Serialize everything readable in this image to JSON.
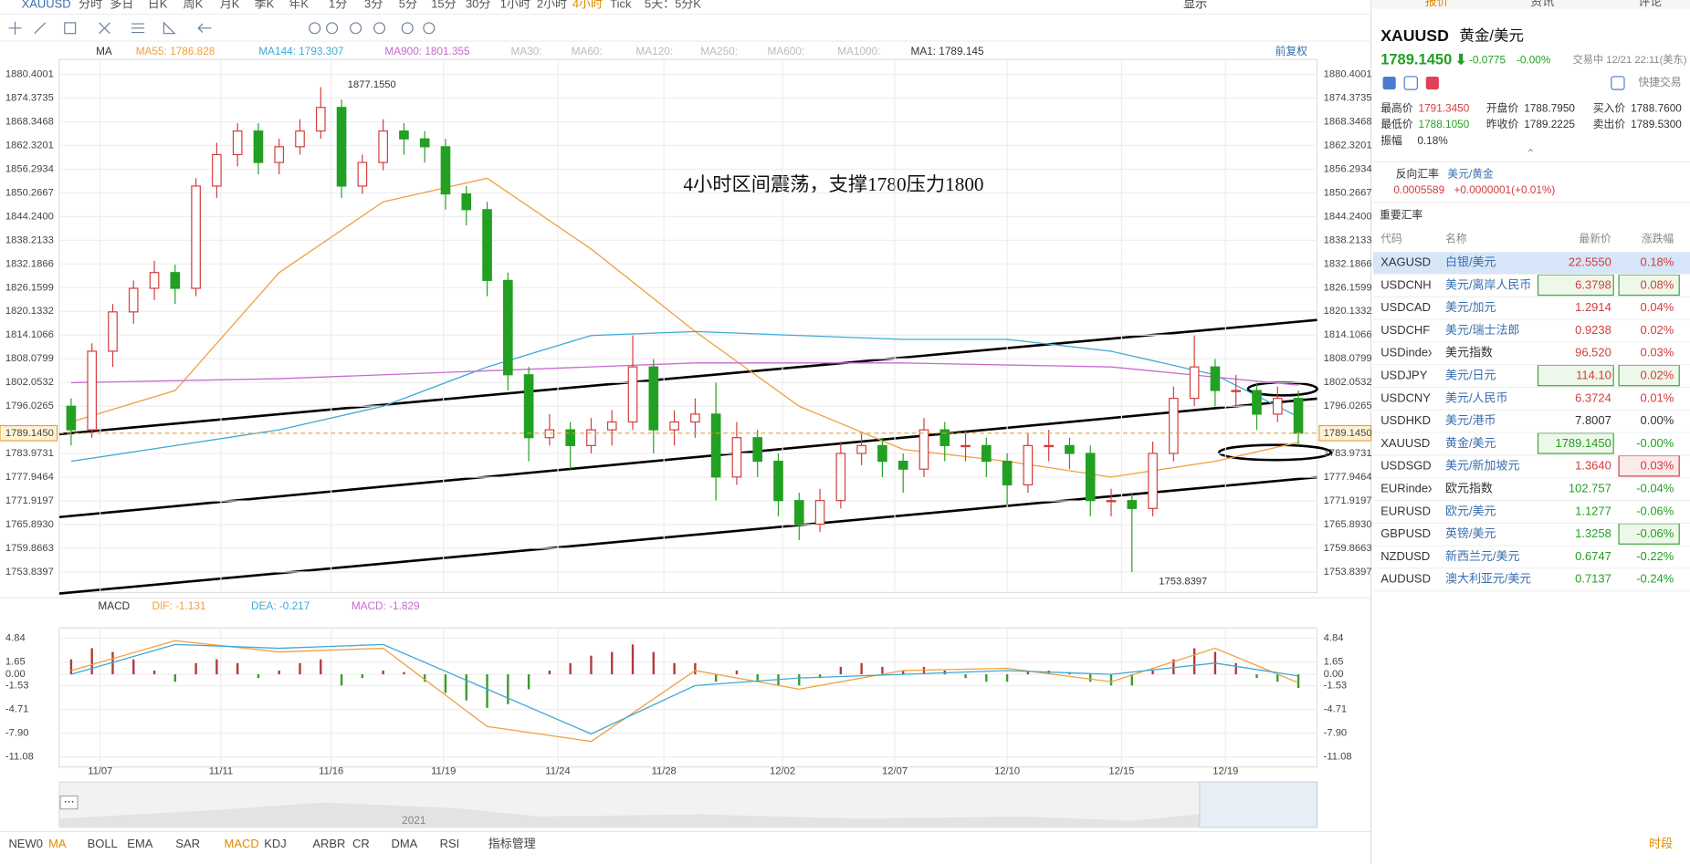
{
  "toolbar": {
    "symbol": "XAUUSD",
    "periods": [
      "分时",
      "多日",
      "日K",
      "周K",
      "月K",
      "季K",
      "年K",
      "1分",
      "3分",
      "5分",
      "15分",
      "30分",
      "1小时",
      "2小时",
      "4小时",
      "Tick",
      "5天：5分K"
    ],
    "active": "4小时",
    "display": "显示"
  },
  "side_tabs": [
    "报价",
    "资讯",
    "评论"
  ],
  "chart_data": [
    {
      "type": "candlestick",
      "indicator": "MA",
      "adjust": "前复权",
      "annotation": "4小时区间震荡，支撑1780压力1800",
      "high_label": "1877.1550",
      "low_label": "1753.8397",
      "last_price": {
        "value": 1789.145,
        "label": "1789.1450"
      },
      "up_color": "#d23c3c",
      "down_color": "#22a022",
      "xlim": [
        -0.57,
        59.9
      ],
      "ylim": [
        1748.63,
        1884.23
      ],
      "xticks": [
        {
          "value": 1.4,
          "label": "11/07"
        },
        {
          "value": 7.2,
          "label": "11/11"
        },
        {
          "value": 12.5,
          "label": "11/16"
        },
        {
          "value": 17.9,
          "label": "11/19"
        },
        {
          "value": 23.4,
          "label": "11/24"
        },
        {
          "value": 28.5,
          "label": "11/28"
        },
        {
          "value": 34.2,
          "label": "12/02"
        },
        {
          "value": 39.6,
          "label": "12/07"
        },
        {
          "value": 45.0,
          "label": "12/10"
        },
        {
          "value": 50.5,
          "label": "12/15"
        },
        {
          "value": 55.5,
          "label": "12/19"
        }
      ],
      "yticks": [
        {
          "value": 1880.4001,
          "label": "1880.4001"
        },
        {
          "value": 1874.3735,
          "label": "1874.3735"
        },
        {
          "value": 1868.3468,
          "label": "1868.3468"
        },
        {
          "value": 1862.3201,
          "label": "1862.3201"
        },
        {
          "value": 1856.2934,
          "label": "1856.2934"
        },
        {
          "value": 1850.2667,
          "label": "1850.2667"
        },
        {
          "value": 1844.24,
          "label": "1844.2400"
        },
        {
          "value": 1838.2133,
          "label": "1838.2133"
        },
        {
          "value": 1832.1866,
          "label": "1832.1866"
        },
        {
          "value": 1826.1599,
          "label": "1826.1599"
        },
        {
          "value": 1820.1332,
          "label": "1820.1332"
        },
        {
          "value": 1814.1066,
          "label": "1814.1066"
        },
        {
          "value": 1808.0799,
          "label": "1808.0799"
        },
        {
          "value": 1802.0532,
          "label": "1802.0532"
        },
        {
          "value": 1796.0265,
          "label": "1796.0265"
        },
        {
          "value": 1783.9731,
          "label": "1783.9731"
        },
        {
          "value": 1777.9464,
          "label": "1777.9464"
        },
        {
          "value": 1771.9197,
          "label": "1771.9197"
        },
        {
          "value": 1765.893,
          "label": "1765.8930"
        },
        {
          "value": 1759.8663,
          "label": "1759.8663"
        },
        {
          "value": 1753.8397,
          "label": "1753.8397"
        }
      ],
      "candles": [
        [
          1796,
          1798,
          1786,
          1790
        ],
        [
          1790,
          1812,
          1788,
          1810
        ],
        [
          1810,
          1822,
          1806,
          1820
        ],
        [
          1820,
          1828,
          1817,
          1826
        ],
        [
          1826,
          1833,
          1823,
          1830
        ],
        [
          1830,
          1832,
          1822,
          1826
        ],
        [
          1826,
          1854,
          1824,
          1852
        ],
        [
          1852,
          1863,
          1849,
          1860
        ],
        [
          1860,
          1868,
          1857,
          1866
        ],
        [
          1866,
          1868,
          1855,
          1858
        ],
        [
          1858,
          1864,
          1855,
          1862
        ],
        [
          1862,
          1869,
          1860,
          1866
        ],
        [
          1866,
          1877.155,
          1864,
          1872
        ],
        [
          1872,
          1874,
          1849,
          1852
        ],
        [
          1852,
          1860,
          1850,
          1858
        ],
        [
          1858,
          1869,
          1856,
          1866
        ],
        [
          1866,
          1868,
          1860,
          1864
        ],
        [
          1864,
          1866,
          1858,
          1862
        ],
        [
          1862,
          1864,
          1846,
          1850
        ],
        [
          1850,
          1852,
          1842,
          1846
        ],
        [
          1846,
          1848,
          1824,
          1828
        ],
        [
          1828,
          1830,
          1800,
          1804
        ],
        [
          1804,
          1806,
          1782,
          1788
        ],
        [
          1788,
          1794,
          1786,
          1790
        ],
        [
          1790,
          1792,
          1780,
          1786
        ],
        [
          1786,
          1793,
          1784,
          1790
        ],
        [
          1790,
          1795,
          1786,
          1792
        ],
        [
          1792,
          1814,
          1790,
          1806
        ],
        [
          1806,
          1808,
          1784,
          1790
        ],
        [
          1790,
          1795,
          1786,
          1792
        ],
        [
          1792,
          1798,
          1788,
          1794
        ],
        [
          1794,
          1802,
          1772,
          1778
        ],
        [
          1778,
          1792,
          1776,
          1788
        ],
        [
          1788,
          1790,
          1778,
          1782
        ],
        [
          1782,
          1784,
          1768,
          1772
        ],
        [
          1772,
          1774,
          1762,
          1766
        ],
        [
          1766,
          1775,
          1764,
          1772
        ],
        [
          1772,
          1787,
          1770,
          1784
        ],
        [
          1784,
          1789,
          1781,
          1786
        ],
        [
          1786,
          1788,
          1778,
          1782
        ],
        [
          1782,
          1784,
          1774,
          1780
        ],
        [
          1780,
          1793,
          1778,
          1790
        ],
        [
          1790,
          1792,
          1782,
          1786
        ],
        [
          1786,
          1790,
          1782,
          1786
        ],
        [
          1786,
          1788,
          1778,
          1782
        ],
        [
          1782,
          1784,
          1771,
          1776
        ],
        [
          1776,
          1789,
          1774,
          1786
        ],
        [
          1786,
          1790,
          1782,
          1786
        ],
        [
          1786,
          1788,
          1780,
          1784
        ],
        [
          1784,
          1786,
          1768,
          1772
        ],
        [
          1772,
          1775,
          1768,
          1772
        ],
        [
          1772,
          1774,
          1753.8397,
          1770
        ],
        [
          1770,
          1787,
          1768,
          1784
        ],
        [
          1784,
          1801,
          1782,
          1798
        ],
        [
          1798,
          1814,
          1796,
          1806
        ],
        [
          1806,
          1808,
          1796,
          1800
        ],
        [
          1800,
          1804,
          1796,
          1800
        ],
        [
          1800,
          1802,
          1790,
          1794
        ],
        [
          1794,
          1801,
          1792,
          1798
        ],
        [
          1798,
          1800,
          1786,
          1789.145
        ]
      ],
      "series": [
        {
          "name": "MA55",
          "label": "MA55: 1786.828",
          "color": "#f0a040",
          "x": [
            0,
            5,
            10,
            15,
            20,
            25,
            30,
            35,
            40,
            45,
            50,
            55,
            59
          ],
          "values": [
            1792,
            1800,
            1830,
            1848,
            1854,
            1836,
            1815,
            1796,
            1785,
            1782,
            1778,
            1782,
            1786.828
          ]
        },
        {
          "name": "MA144",
          "label": "MA144: 1793.307",
          "color": "#3fa9d6",
          "x": [
            0,
            5,
            10,
            15,
            20,
            25,
            30,
            35,
            40,
            45,
            50,
            55,
            59
          ],
          "values": [
            1782,
            1786,
            1790,
            1796,
            1806,
            1814,
            1815,
            1814,
            1813,
            1813,
            1810,
            1804,
            1793.307
          ]
        },
        {
          "name": "MA900",
          "label": "MA900: 1801.355",
          "color": "#c86ad0",
          "x": [
            0,
            10,
            20,
            30,
            40,
            50,
            59
          ],
          "values": [
            1802,
            1803,
            1805,
            1807,
            1807,
            1806,
            1801.355
          ]
        }
      ],
      "inactive_labels": [
        "MA30:",
        "MA60:",
        "MA120:",
        "MA250:",
        "MA600:",
        "MA1000:"
      ],
      "ma1_label": "MA1: 1789.145"
    },
    {
      "type": "macd",
      "indicator": "MACD",
      "xlim": [
        -0.57,
        59.9
      ],
      "ylim": [
        -12.43,
        6.21
      ],
      "yticks": [
        {
          "value": 4.84,
          "label": "4.84"
        },
        {
          "value": 1.65,
          "label": "1.65"
        },
        {
          "value": 0,
          "label": "0.00"
        },
        {
          "value": -1.53,
          "label": "-1.53"
        },
        {
          "value": -4.71,
          "label": "-4.71"
        },
        {
          "value": -7.9,
          "label": "-7.90"
        },
        {
          "value": -11.08,
          "label": "-11.08"
        }
      ],
      "series": [
        {
          "name": "DIF",
          "label": "DIF: -1.131",
          "color": "#f0a040",
          "x": [
            0,
            5,
            10,
            15,
            20,
            25,
            30,
            35,
            40,
            45,
            50,
            55,
            59
          ],
          "values": [
            0.5,
            4.5,
            3,
            3.5,
            -7,
            -9,
            0.5,
            -2,
            0.5,
            0.8,
            -1,
            3.5,
            -1.131
          ]
        },
        {
          "name": "DEA",
          "label": "DEA: -0.217",
          "color": "#3fa9d6",
          "x": [
            0,
            5,
            10,
            15,
            20,
            25,
            30,
            35,
            40,
            45,
            50,
            55,
            59
          ],
          "values": [
            0,
            4,
            3.5,
            4,
            -2,
            -8,
            -1.5,
            -0.5,
            0,
            0.5,
            0,
            1.5,
            -0.217
          ]
        }
      ],
      "histogram": {
        "name": "MACD",
        "label": "MACD: -1.829",
        "up_color": "#b03a3a",
        "down_color": "#3a9a2a",
        "values": [
          2,
          3.5,
          3,
          2,
          0.5,
          -1,
          1.5,
          2,
          1.5,
          -0.5,
          0.5,
          1.5,
          2,
          -1.5,
          -0.5,
          0.5,
          0.3,
          -1,
          -2.5,
          -3.5,
          -4.5,
          -4,
          -2,
          0.5,
          1.5,
          2.5,
          3,
          4,
          3,
          1.5,
          1.5,
          -1,
          0.5,
          -1,
          -1.5,
          -1.5,
          -0.5,
          1,
          1.5,
          1,
          0.5,
          1,
          0.5,
          -0.5,
          -1,
          -1,
          0.5,
          0.5,
          0.3,
          -1,
          -1.5,
          -1.5,
          0.5,
          2,
          3.5,
          3,
          1.5,
          -0.5,
          -1,
          -1.829
        ]
      }
    }
  ],
  "navigator": {
    "year": "2021"
  },
  "bottom_tabs": [
    "NEW0",
    "MA",
    "BOLL",
    "EMA",
    "SAR",
    "MACD",
    "KDJ",
    "ARBR",
    "CR",
    "DMA",
    "RSI",
    "指标管理"
  ],
  "session": "时段",
  "quote": {
    "code": "XAUUSD",
    "name": "黄金/美元",
    "price": "1789.1450",
    "change": "-0.0775",
    "change_pct": "-0.00%",
    "status": "交易中 12/21 22:11(美东)",
    "quick_trade": "快捷交易",
    "stats": [
      [
        "最高价",
        "1791.3450"
      ],
      [
        "开盘价",
        "1788.7950"
      ],
      [
        "买入价",
        "1788.7600"
      ],
      [
        "最低价",
        "1788.1050"
      ],
      [
        "昨收价",
        "1789.2225"
      ],
      [
        "卖出价",
        "1789.5300"
      ],
      [
        "振幅",
        "0.18%"
      ]
    ],
    "reverse": {
      "title": "反向汇率",
      "pair": "美元/黄金",
      "price": "0.0005589",
      "change": "+0.0000001(+0.01%)"
    }
  },
  "table": {
    "title": "重要汇率",
    "columns": [
      "代码",
      "名称",
      "最新价",
      "涨跌幅"
    ],
    "rows": [
      [
        "XAGUSD",
        "白银/美元",
        "22.5550",
        "0.18%"
      ],
      [
        "USDCNH",
        "美元/离岸人民币",
        "6.3798",
        "0.08%"
      ],
      [
        "USDCAD",
        "美元/加元",
        "1.2914",
        "0.04%"
      ],
      [
        "USDCHF",
        "美元/瑞士法郎",
        "0.9238",
        "0.02%"
      ],
      [
        "USDindex",
        "美元指数",
        "96.520",
        "0.03%"
      ],
      [
        "USDJPY",
        "美元/日元",
        "114.10",
        "0.02%"
      ],
      [
        "USDCNY",
        "美元/人民币",
        "6.3724",
        "0.01%"
      ],
      [
        "USDHKD",
        "美元/港币",
        "7.8007",
        "0.00%"
      ],
      [
        "XAUUSD",
        "黄金/美元",
        "1789.1450",
        "-0.00%"
      ],
      [
        "USDSGD",
        "美元/新加坡元",
        "1.3640",
        "0.03%"
      ],
      [
        "EURindex",
        "欧元指数",
        "102.757",
        "-0.04%"
      ],
      [
        "EURUSD",
        "欧元/美元",
        "1.1277",
        "-0.06%"
      ],
      [
        "GBPUSD",
        "英镑/美元",
        "1.3258",
        "-0.06%"
      ],
      [
        "NZDUSD",
        "新西兰元/美元",
        "0.6747",
        "-0.22%"
      ],
      [
        "AUDUSD",
        "澳大利亚元/美元",
        "0.7137",
        "-0.24%"
      ]
    ]
  }
}
